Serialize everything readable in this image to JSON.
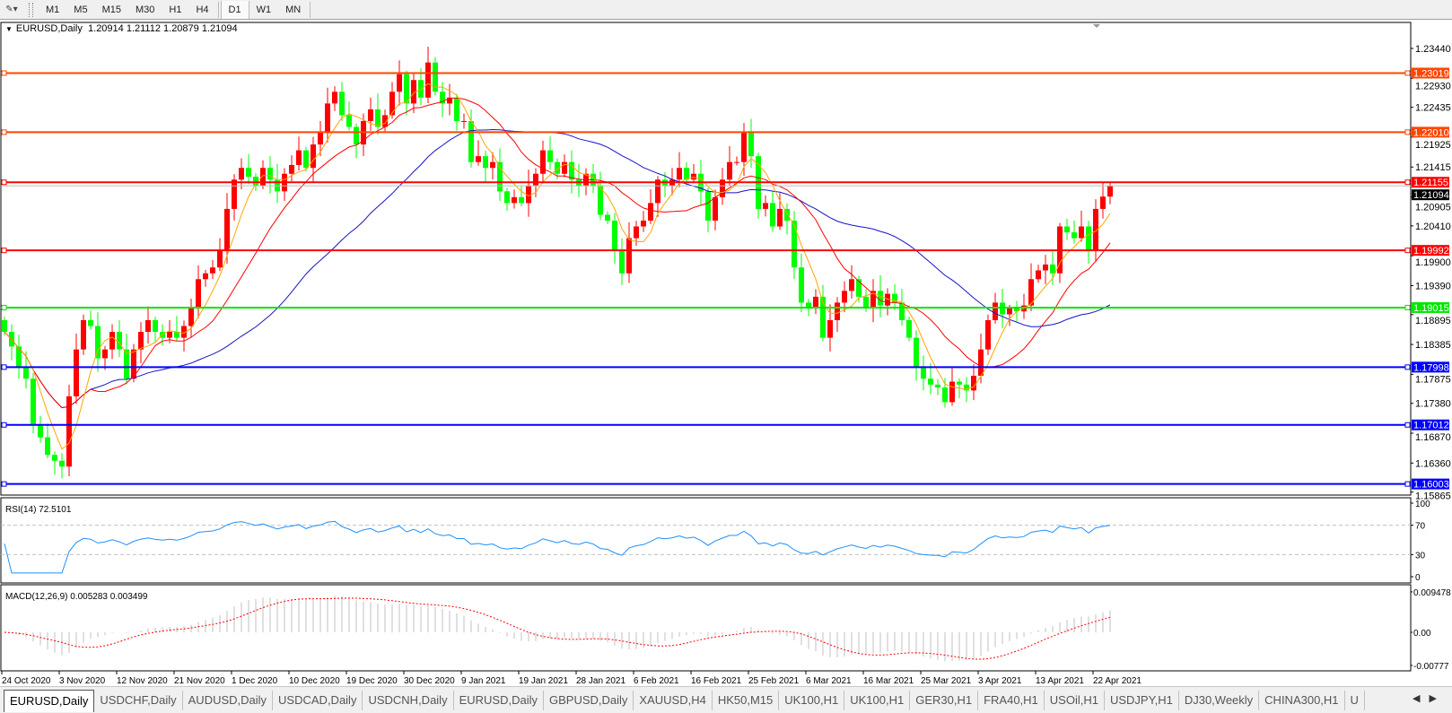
{
  "toolbar": {
    "timeframes": [
      "M1",
      "M5",
      "M15",
      "M30",
      "H1",
      "H4",
      "D1",
      "W1",
      "MN"
    ],
    "active": "D1"
  },
  "chart": {
    "symbol_label": "EURUSD,Daily",
    "ohlc": "1.20914 1.21112 1.20879 1.21094",
    "bid_label": "1.21094",
    "bull_color": "#FF0000",
    "bear_color": "#00FF00",
    "price_ticks": [
      "1.23440",
      "1.22930",
      "1.22435",
      "1.21925",
      "1.21415",
      "1.20905",
      "1.20410",
      "1.19900",
      "1.19390",
      "1.18895",
      "1.18385",
      "1.17875",
      "1.17380",
      "1.16870",
      "1.16360",
      "1.15865"
    ],
    "hlines": [
      {
        "label": "1.23019",
        "color": "#FF4500"
      },
      {
        "label": "1.22010",
        "color": "#FF4500"
      },
      {
        "label": "1.21155",
        "color": "#FF0000"
      },
      {
        "label": "1.19992",
        "color": "#FF0000"
      },
      {
        "label": "1.19015",
        "color": "#00E600"
      },
      {
        "label": "1.17998",
        "color": "#0000FF"
      },
      {
        "label": "1.17012",
        "color": "#0000FF"
      },
      {
        "label": "1.16003",
        "color": "#0000FF"
      }
    ],
    "date_labels": [
      "24 Oct 2020",
      "3 Nov 2020",
      "12 Nov 2020",
      "21 Nov 2020",
      "1 Dec 2020",
      "10 Dec 2020",
      "19 Dec 2020",
      "30 Dec 2020",
      "9 Jan 2021",
      "19 Jan 2021",
      "28 Jan 2021",
      "6 Feb 2021",
      "16 Feb 2021",
      "25 Feb 2021",
      "6 Mar 2021",
      "16 Mar 2021",
      "25 Mar 2021",
      "3 Apr 2021",
      "13 Apr 2021",
      "22 Apr 2021"
    ],
    "ma_colors": {
      "fast": "#FFA500",
      "mid": "#FF0000",
      "slow": "#1414C8"
    },
    "closes": [
      1.186,
      1.1835,
      1.18,
      1.178,
      1.17,
      1.168,
      1.165,
      1.164,
      1.163,
      1.175,
      1.183,
      1.188,
      1.187,
      1.1815,
      1.183,
      1.186,
      1.183,
      1.178,
      1.183,
      1.186,
      1.188,
      1.186,
      1.185,
      1.186,
      1.185,
      1.187,
      1.19,
      1.195,
      1.196,
      1.197,
      1.2,
      1.207,
      1.212,
      1.214,
      1.2125,
      1.211,
      1.214,
      1.212,
      1.21,
      1.213,
      1.2145,
      1.217,
      1.214,
      1.218,
      1.22,
      1.225,
      1.227,
      1.223,
      1.221,
      1.218,
      1.222,
      1.224,
      1.221,
      1.223,
      1.227,
      1.23,
      1.225,
      1.229,
      1.226,
      1.232,
      1.227,
      1.225,
      1.226,
      1.222,
      1.222,
      1.215,
      1.216,
      1.214,
      1.215,
      1.21,
      1.208,
      1.209,
      1.208,
      1.211,
      1.213,
      1.217,
      1.215,
      1.213,
      1.215,
      1.212,
      1.211,
      1.213,
      1.211,
      1.206,
      1.205,
      1.2,
      1.196,
      1.202,
      1.204,
      1.205,
      1.208,
      1.212,
      1.211,
      1.212,
      1.214,
      1.212,
      1.213,
      1.21,
      1.205,
      1.209,
      1.212,
      1.215,
      1.215,
      1.22,
      1.216,
      1.207,
      1.208,
      1.204,
      1.207,
      1.205,
      1.197,
      1.191,
      1.19,
      1.192,
      1.185,
      1.188,
      1.191,
      1.193,
      1.195,
      1.192,
      1.19,
      1.193,
      1.1905,
      1.1925,
      1.191,
      1.188,
      1.185,
      1.18,
      1.178,
      1.177,
      1.1765,
      1.174,
      1.1775,
      1.177,
      1.176,
      1.1785,
      1.183,
      1.188,
      1.191,
      1.189,
      1.19,
      1.1895,
      1.1905,
      1.195,
      1.1965,
      1.1975,
      1.196,
      1.204,
      1.203,
      1.202,
      1.204,
      1.2,
      1.207,
      1.2091,
      1.21094
    ]
  },
  "rsi": {
    "label": "RSI(14) 72.5101",
    "ticks": [
      "100",
      "70",
      "30",
      "0"
    ],
    "line_color": "#1E90FF"
  },
  "macd": {
    "label": "MACD(12,26,9) 0.005283 0.003499",
    "ticks": [
      "0.009478",
      "0.00",
      "-0.00777"
    ],
    "hist_color": "#C0C0C0",
    "signal_color": "#FF0000"
  },
  "tabs": [
    "EURUSD,Daily",
    "USDCHF,Daily",
    "AUDUSD,Daily",
    "USDCAD,Daily",
    "USDCNH,Daily",
    "EURUSD,Daily",
    "GBPUSD,Daily",
    "XAUUSD,H4",
    "HK50,M15",
    "UK100,H1",
    "UK100,H1",
    "GER30,H1",
    "FRA40,H1",
    "USOil,H1",
    "USDJPY,H1",
    "DJ30,Weekly",
    "CHINA300,H1",
    "U"
  ],
  "active_tab": 0
}
